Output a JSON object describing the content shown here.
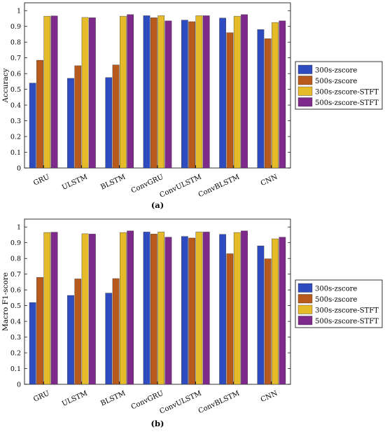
{
  "chart_data": [
    {
      "type": "bar",
      "ylabel": "Accuracy",
      "caption": "(a)",
      "ylim": [
        0,
        1.05
      ],
      "yticks": [
        "0",
        "0.1",
        "0.2",
        "0.3",
        "0.4",
        "0.5",
        "0.6",
        "0.7",
        "0.8",
        "0.9",
        "1"
      ],
      "legend_position": "right",
      "categories": [
        "GRU",
        "ULSTM",
        "BLSTM",
        "ConvGRU",
        "ConvULSTM",
        "ConvBLSTM",
        "CNN"
      ],
      "series": [
        {
          "name": "300s-zscore",
          "color": "#2e4bbf",
          "values": [
            0.54,
            0.57,
            0.575,
            0.968,
            0.94,
            0.953,
            0.88
          ]
        },
        {
          "name": "500s-zscore",
          "color": "#b85a1c",
          "values": [
            0.685,
            0.65,
            0.655,
            0.955,
            0.93,
            0.86,
            0.822
          ]
        },
        {
          "name": "300s-zscore-STFT",
          "color": "#e6bb2a",
          "values": [
            0.965,
            0.957,
            0.965,
            0.968,
            0.968,
            0.965,
            0.925
          ]
        },
        {
          "name": "500s-zscore-STFT",
          "color": "#7d2a8c",
          "values": [
            0.967,
            0.955,
            0.975,
            0.935,
            0.968,
            0.975,
            0.935
          ]
        }
      ]
    },
    {
      "type": "bar",
      "ylabel": "Macro F1-score",
      "caption": "(b)",
      "ylim": [
        0,
        1.05
      ],
      "yticks": [
        "0",
        "0.1",
        "0.2",
        "0.3",
        "0.4",
        "0.5",
        "0.6",
        "0.7",
        "0.8",
        "0.9",
        "1"
      ],
      "legend_position": "right",
      "categories": [
        "GRU",
        "ULSTM",
        "BLSTM",
        "ConvGRU",
        "ConvULSTM",
        "ConvBLSTM",
        "CNN"
      ],
      "series": [
        {
          "name": "300s-zscore",
          "color": "#2e4bbf",
          "values": [
            0.52,
            0.565,
            0.58,
            0.968,
            0.94,
            0.953,
            0.88
          ]
        },
        {
          "name": "500s-zscore",
          "color": "#b85a1c",
          "values": [
            0.68,
            0.67,
            0.672,
            0.955,
            0.93,
            0.83,
            0.798
          ]
        },
        {
          "name": "300s-zscore-STFT",
          "color": "#e6bb2a",
          "values": [
            0.965,
            0.957,
            0.965,
            0.968,
            0.968,
            0.965,
            0.925
          ]
        },
        {
          "name": "500s-zscore-STFT",
          "color": "#7d2a8c",
          "values": [
            0.967,
            0.955,
            0.975,
            0.935,
            0.968,
            0.975,
            0.935
          ]
        }
      ]
    }
  ]
}
